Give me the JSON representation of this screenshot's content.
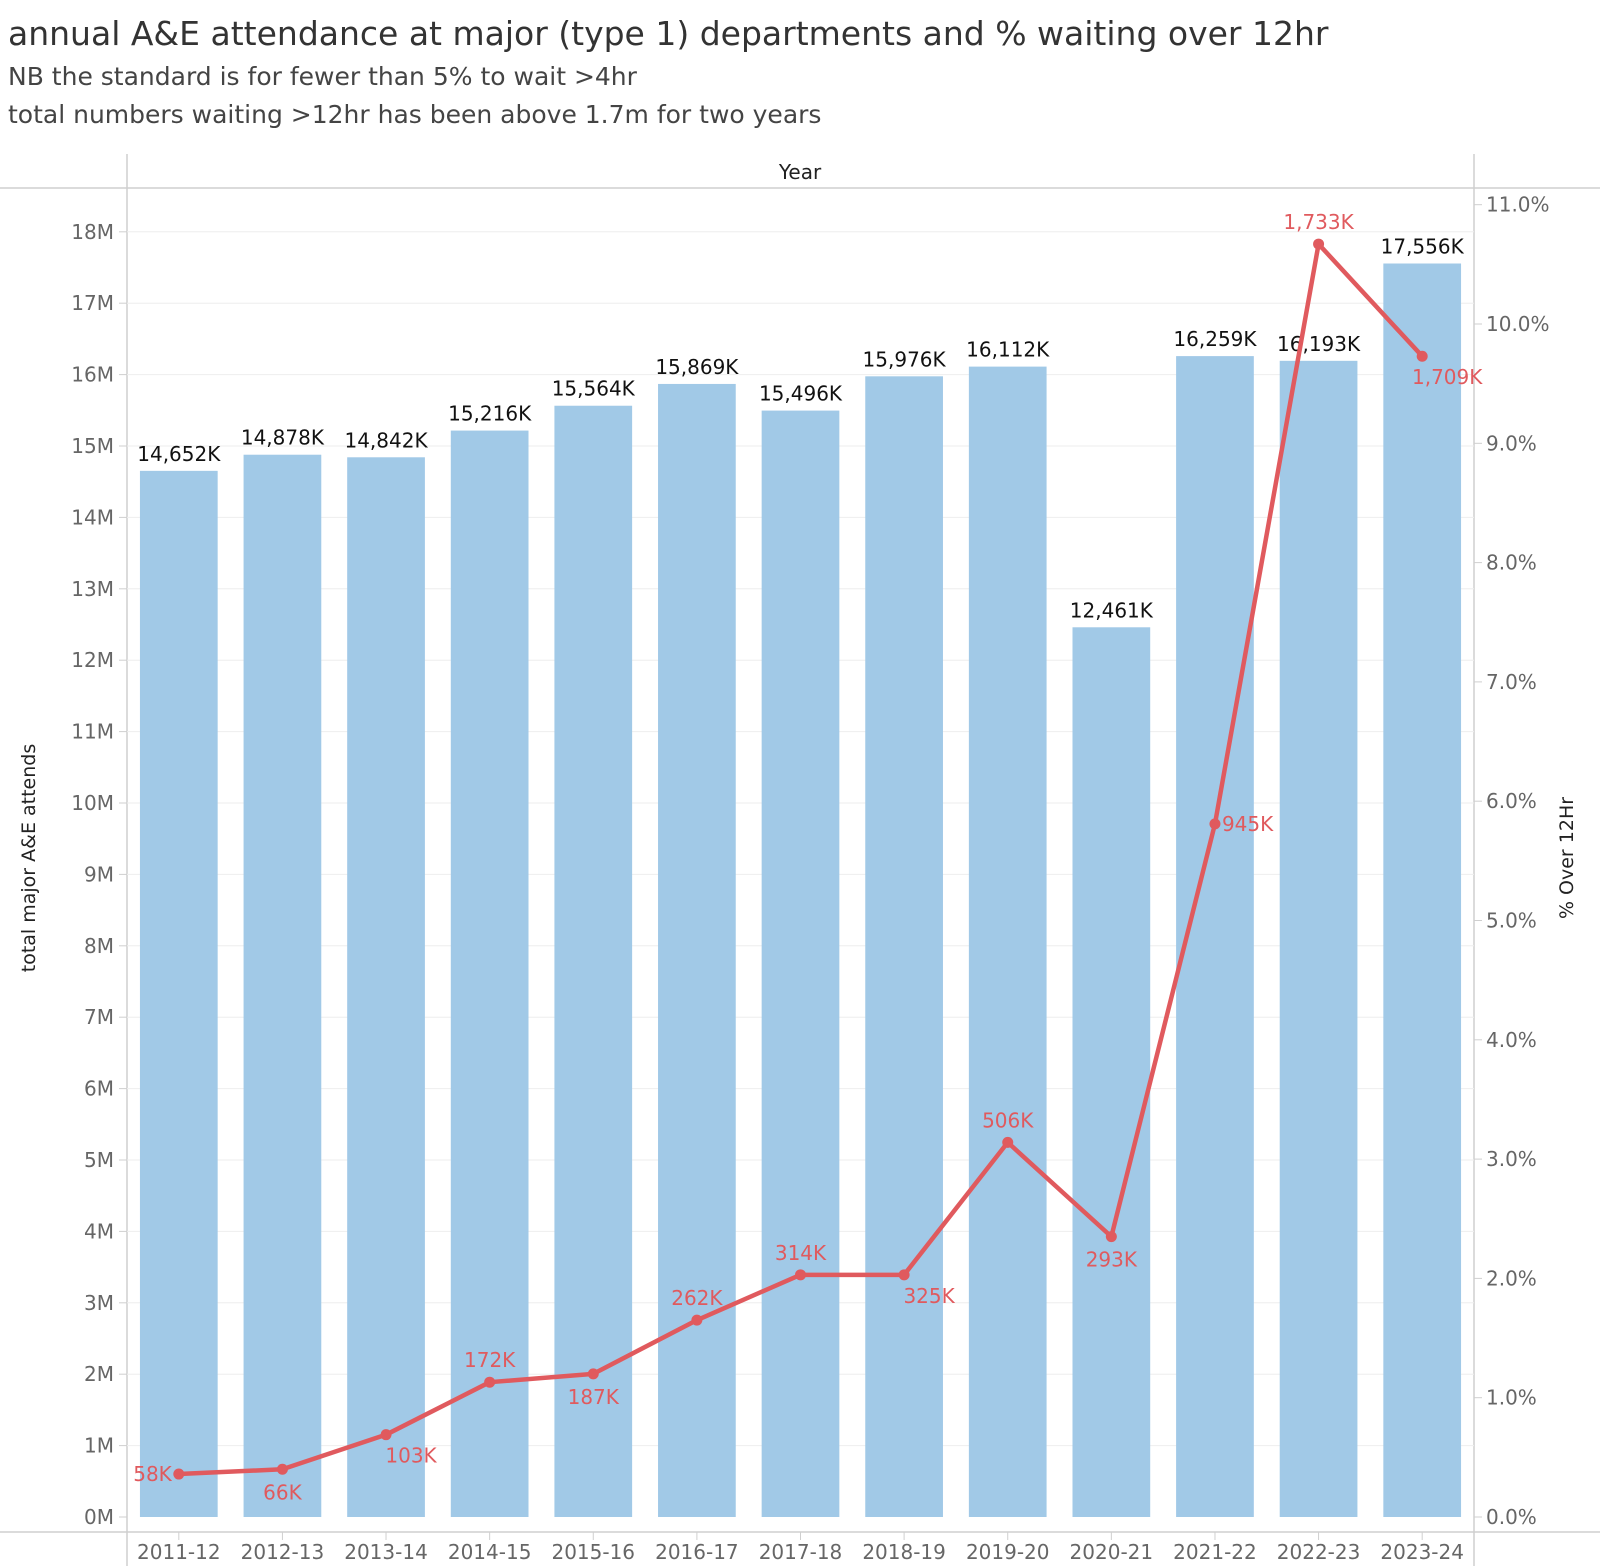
{
  "header": {
    "title": "annual A&E attendance at major (type 1) departments and % waiting over 12hr",
    "subtitle_1": "NB the standard is for fewer than 5% to wait >4hr",
    "subtitle_2": "total numbers waiting >12hr has been above 1.7m for two years"
  },
  "chart_data": {
    "type": "bar",
    "x_header": "Year",
    "categories": [
      "2011-12",
      "2012-13",
      "2013-14",
      "2014-15",
      "2015-16",
      "2016-17",
      "2017-18",
      "2018-19",
      "2019-20",
      "2020-21",
      "2021-22",
      "2022-23",
      "2023-24"
    ],
    "ylabel": "total major A&E attends",
    "y2label": "% Over 12Hr",
    "ylim": [
      0,
      18.7
    ],
    "y2lim": [
      0,
      11.5
    ],
    "y_ticks": [
      "0M",
      "1M",
      "2M",
      "3M",
      "4M",
      "5M",
      "6M",
      "7M",
      "8M",
      "9M",
      "10M",
      "11M",
      "12M",
      "13M",
      "14M",
      "15M",
      "16M",
      "17M",
      "18M"
    ],
    "y2_ticks": [
      "0.0%",
      "1.0%",
      "2.0%",
      "3.0%",
      "4.0%",
      "5.0%",
      "6.0%",
      "7.0%",
      "8.0%",
      "9.0%",
      "10.0%",
      "11.0%"
    ],
    "grid": true,
    "colors": {
      "bars": "#a1c9e7",
      "line": "#e05a5e",
      "bar_label": "#111111",
      "line_label": "#e05a5e"
    },
    "series": [
      {
        "type": "bar",
        "values": [
          14.652,
          14.878,
          14.842,
          15.216,
          15.564,
          15.869,
          15.496,
          15.976,
          16.112,
          12.461,
          16.259,
          16.193,
          17.556
        ],
        "labels": [
          "14,652K",
          "14,878K",
          "14,842K",
          "15,216K",
          "15,564K",
          "15,869K",
          "15,496K",
          "15,976K",
          "16,112K",
          "12,461K",
          "16,259K",
          "16,193K",
          "17,556K"
        ]
      },
      {
        "type": "line",
        "axis": "secondary",
        "values": [
          0.36,
          0.4,
          0.69,
          1.13,
          1.2,
          1.65,
          2.03,
          2.03,
          3.14,
          2.35,
          5.81,
          10.67,
          9.73
        ],
        "labels": [
          "58K",
          "66K",
          "103K",
          "172K",
          "187K",
          "262K",
          "314K",
          "325K",
          "506K",
          "293K",
          "945K",
          "1,733K",
          "1,709K"
        ],
        "label_pos": [
          "left",
          "below",
          "below-right",
          "above",
          "below",
          "above",
          "above",
          "below-right",
          "above",
          "below",
          "right",
          "above",
          "below-right"
        ]
      }
    ]
  }
}
